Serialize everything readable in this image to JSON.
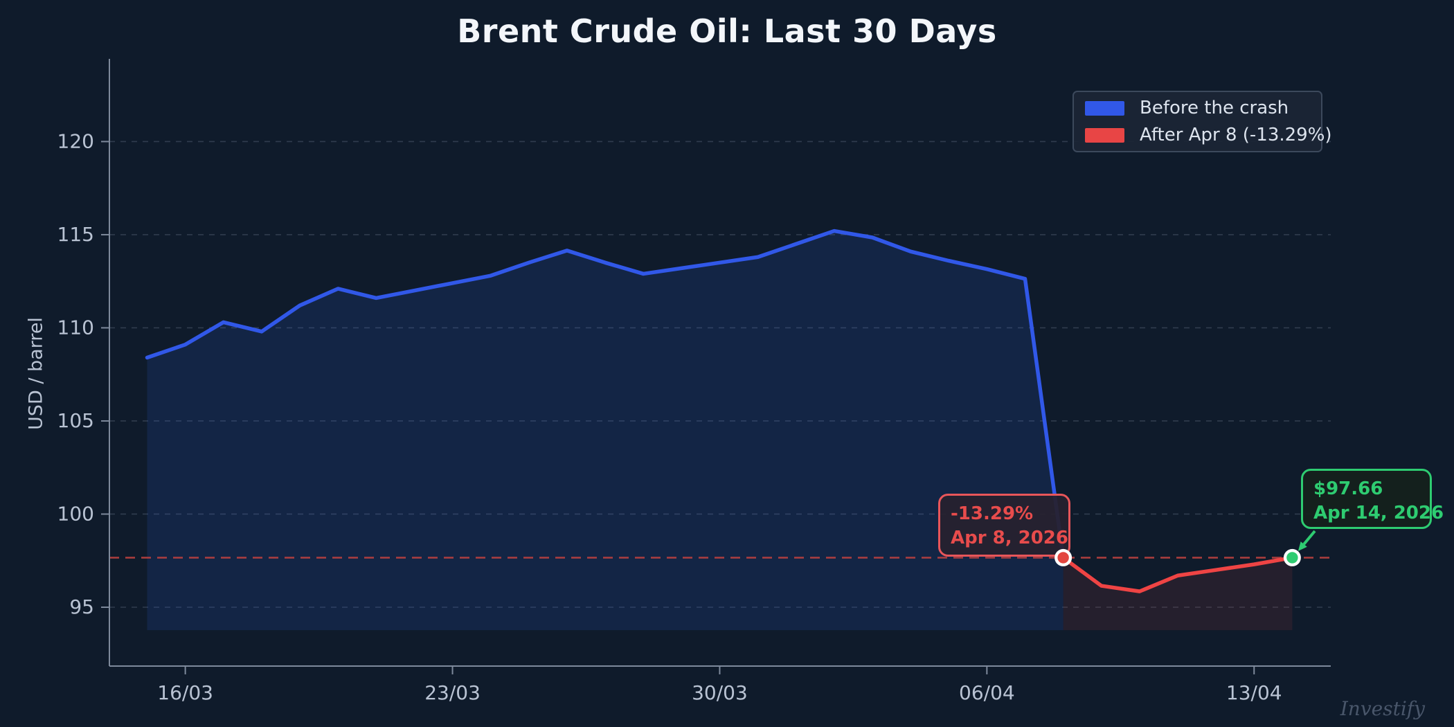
{
  "title": "Brent Crude Oil: Last 30 Days",
  "watermark": "Investify",
  "legend": {
    "items": [
      {
        "label": "Before the crash",
        "color": "#3158e8"
      },
      {
        "label": "After Apr 8 (-13.29%)",
        "color": "#e84545"
      }
    ]
  },
  "annotations": {
    "crash": {
      "line1": "-13.29%",
      "line2": "Apr 8, 2026",
      "color": "#e84c4c"
    },
    "latest": {
      "line1": "$97.66",
      "line2": "Apr 14, 2026",
      "color": "#2ecc71"
    }
  },
  "chart_data": {
    "type": "line",
    "title": "Brent Crude Oil: Last 30 Days",
    "xlabel": "",
    "ylabel": "USD / barrel",
    "ylim": [
      91.84,
      124.44
    ],
    "y_ticks": [
      95,
      100,
      105,
      110,
      115,
      120
    ],
    "x_ticks": [
      {
        "label": "16/03",
        "index": 1
      },
      {
        "label": "23/03",
        "index": 8
      },
      {
        "label": "30/03",
        "index": 15
      },
      {
        "label": "06/04",
        "index": 22
      },
      {
        "label": "13/04",
        "index": 29
      }
    ],
    "dates": [
      "Mar 15",
      "Mar 16",
      "Mar 17",
      "Mar 18",
      "Mar 19",
      "Mar 20",
      "Mar 21",
      "Mar 22",
      "Mar 23",
      "Mar 24",
      "Mar 25",
      "Mar 26",
      "Mar 27",
      "Mar 28",
      "Mar 29",
      "Mar 30",
      "Mar 31",
      "Apr 1",
      "Apr 2",
      "Apr 3",
      "Apr 4",
      "Apr 5",
      "Apr 6",
      "Apr 7",
      "Apr 8",
      "Apr 9",
      "Apr 10",
      "Apr 11",
      "Apr 12",
      "Apr 13",
      "Apr 14"
    ],
    "series": [
      {
        "name": "Before the crash",
        "color": "#3158e8",
        "fill": "rgba(49,97,232,0.14)",
        "start_index": 0,
        "values": [
          108.4,
          109.1,
          110.3,
          109.8,
          111.2,
          112.1,
          111.6,
          112.0,
          112.4,
          112.8,
          113.5,
          114.15,
          113.5,
          112.9,
          113.2,
          113.5,
          113.8,
          114.5,
          115.2,
          114.85,
          114.1,
          113.6,
          113.15,
          112.63,
          97.66
        ]
      },
      {
        "name": "After Apr 8 (-13.29%)",
        "color": "#ef4444",
        "fill": "rgba(239,68,68,0.10)",
        "start_index": 24,
        "values": [
          97.66,
          96.15,
          95.85,
          96.7,
          97.0,
          97.3,
          97.66
        ]
      }
    ],
    "reference_line": {
      "value": 97.66,
      "color": "#b84040",
      "style": "dashed"
    },
    "markers": [
      {
        "index": 24,
        "value": 97.66,
        "color": "#e3453f",
        "name": "crash-marker"
      },
      {
        "index": 30,
        "value": 97.66,
        "color": "#2ecc71",
        "name": "latest-marker"
      }
    ],
    "area_baseline": 93.77,
    "grid": "horizontal-dashed",
    "legend_position": "upper-right"
  }
}
